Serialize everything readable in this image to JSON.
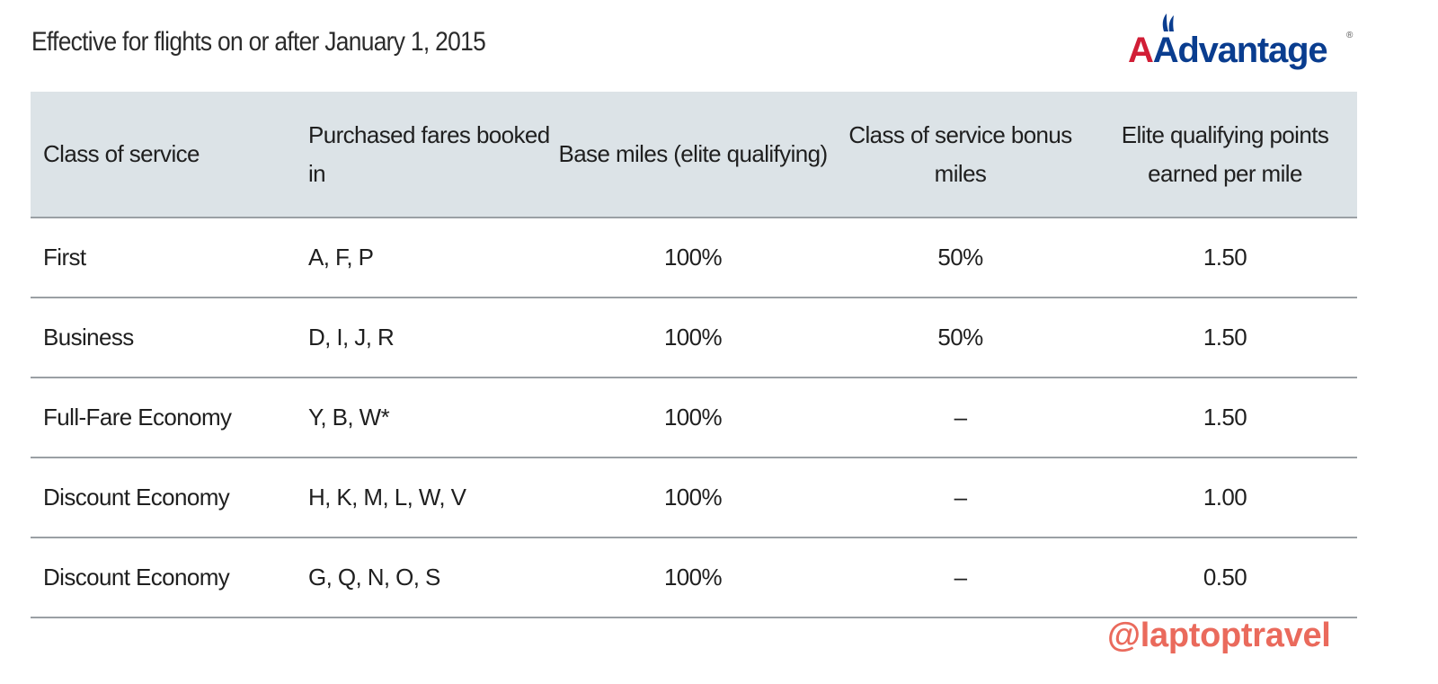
{
  "header": {
    "title": "Effective for flights on or after January 1, 2015",
    "logo_text": "AAdvantage",
    "logo_registered": "®"
  },
  "colors": {
    "header_band": "#dce3e7",
    "row_divider": "#9aa0a4",
    "logo_blue": "#0a3d8f",
    "logo_red": "#d11e36",
    "watermark": "#ea6a5c"
  },
  "table": {
    "columns": [
      "Class of service",
      "Purchased fares booked in",
      "Base miles (elite qualifying)",
      "Class of service bonus miles",
      "Elite qualifying points earned per mile"
    ],
    "rows": [
      [
        "First",
        "A, F, P",
        "100%",
        "50%",
        "1.50"
      ],
      [
        "Business",
        "D, I, J, R",
        "100%",
        "50%",
        "1.50"
      ],
      [
        "Full-Fare Economy",
        "Y, B, W*",
        "100%",
        "–",
        "1.50"
      ],
      [
        "Discount Economy",
        "H, K, M, L, W, V",
        "100%",
        "–",
        "1.00"
      ],
      [
        "Discount Economy",
        "G, Q, N, O, S",
        "100%",
        "–",
        "0.50"
      ]
    ]
  },
  "watermark": {
    "text": "@laptoptravel"
  }
}
